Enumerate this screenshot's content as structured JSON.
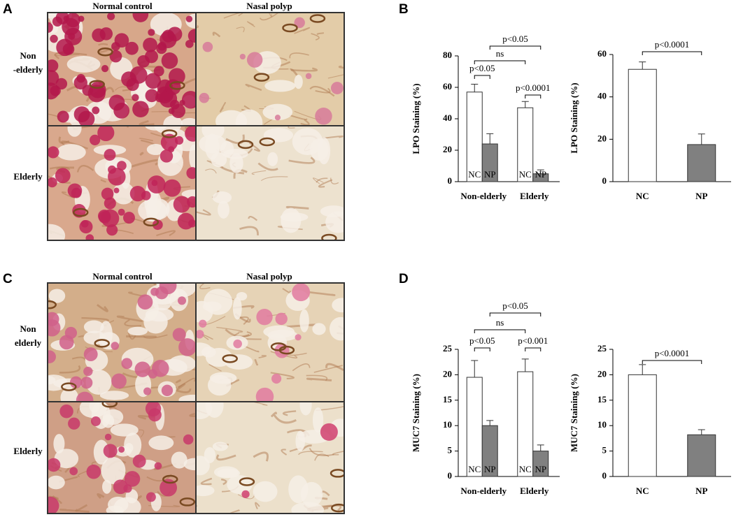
{
  "panels": {
    "labels": [
      "A",
      "B",
      "C",
      "D"
    ]
  },
  "images": [
    {
      "col_labels": [
        "Normal control",
        "Nasal polyp"
      ],
      "row_labels": [
        [
          "Non",
          "-elderly"
        ],
        [
          "Elderly"
        ]
      ]
    },
    {
      "col_labels": [
        "Normal control",
        "Nasal polyp"
      ],
      "row_labels": [
        [
          "Non",
          "elderly"
        ],
        [
          "Elderly"
        ]
      ]
    }
  ],
  "chart_data": [
    {
      "type": "bar",
      "y_label": "LPO Staining (%)",
      "categories": [
        "Non-elderly",
        "Elderly"
      ],
      "series": [
        {
          "name": "NC",
          "color": "#ffffff",
          "values": [
            57,
            47
          ],
          "errors": [
            5,
            4
          ]
        },
        {
          "name": "NP",
          "color": "#808080",
          "values": [
            24,
            5
          ],
          "errors": [
            6.5,
            2.5
          ]
        }
      ],
      "ylim": [
        0,
        80
      ],
      "yticks": [
        0,
        20,
        40,
        60,
        80
      ],
      "annotations": [
        "p<0.05",
        "ns",
        "p<0.05",
        "p<0.0001"
      ]
    },
    {
      "type": "bar",
      "y_label": "LPO Staining (%)",
      "categories": [
        "NC",
        "NP"
      ],
      "values": [
        53,
        17.5
      ],
      "errors": [
        3.5,
        5
      ],
      "colors": [
        "#ffffff",
        "#808080"
      ],
      "ylim": [
        0,
        60
      ],
      "yticks": [
        0,
        20,
        40,
        60
      ],
      "annotations": [
        "p<0.0001"
      ]
    },
    {
      "type": "bar",
      "y_label": "MUC7 Staining (%)",
      "categories": [
        "Non-elderly",
        "Elderly"
      ],
      "series": [
        {
          "name": "NC",
          "color": "#ffffff",
          "values": [
            19.5,
            20.6
          ],
          "errors": [
            3.3,
            2.5
          ]
        },
        {
          "name": "NP",
          "color": "#808080",
          "values": [
            10,
            5
          ],
          "errors": [
            1,
            1.2
          ]
        }
      ],
      "ylim": [
        0,
        25
      ],
      "yticks": [
        0,
        5,
        10,
        15,
        20,
        25
      ],
      "annotations": [
        "p<0.05",
        "ns",
        "p<0.05",
        "p<0.001"
      ]
    },
    {
      "type": "bar",
      "y_label": "MUC7 Staining (%)",
      "categories": [
        "NC",
        "NP"
      ],
      "values": [
        20,
        8.2
      ],
      "errors": [
        2,
        1
      ],
      "colors": [
        "#ffffff",
        "#808080"
      ],
      "ylim": [
        0,
        25
      ],
      "yticks": [
        0,
        5,
        10,
        15,
        20,
        25
      ],
      "annotations": [
        "p<0.0001"
      ]
    }
  ]
}
